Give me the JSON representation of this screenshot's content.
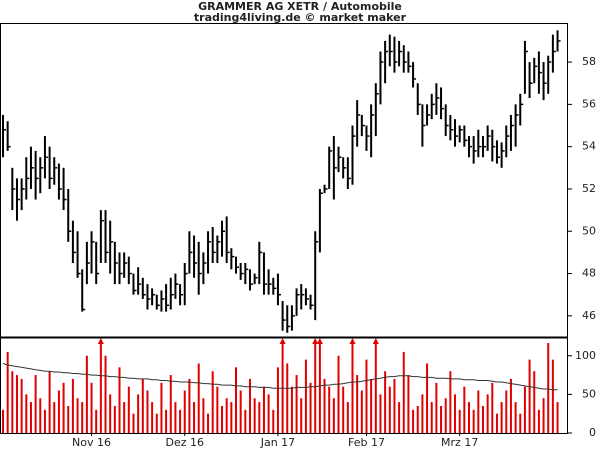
{
  "chart_data": [
    {
      "type": "ohlc",
      "title": "GRAMMER AG XETR / Automobile",
      "subtitle": "trading4living.de © market maker",
      "color": "#000000",
      "ylim": [
        45,
        59.8
      ],
      "yticks": [
        46,
        48,
        50,
        52,
        54,
        56,
        58
      ],
      "high": [
        55.5,
        55.2,
        53,
        52.5,
        52.5,
        53.5,
        54,
        53.8,
        53.5,
        54.5,
        54,
        53.5,
        53.2,
        53,
        52,
        50.5,
        50,
        48.2,
        49.5,
        50,
        49.5,
        51,
        51,
        50.5,
        49.5,
        49,
        49,
        48.8,
        48,
        48.3,
        47.8,
        47.5,
        47.3,
        47,
        47.2,
        47.5,
        47.8,
        48,
        47.5,
        48.5,
        50,
        49.8,
        49.5,
        49,
        50,
        50.2,
        49.8,
        50.5,
        50.7,
        49.2,
        48.8,
        48.5,
        48.5,
        48.2,
        48,
        49.5,
        49,
        48.2,
        47.8,
        48,
        46.7,
        46.5,
        46.5,
        47.3,
        47.5,
        47.3,
        47,
        50,
        52,
        52.2,
        54,
        54.5,
        54,
        53.5,
        53.5,
        55,
        56.2,
        55.5,
        55,
        56,
        57,
        58.5,
        59,
        59.3,
        59.2,
        59,
        58.8,
        58.5,
        58,
        57,
        56,
        56,
        56.5,
        57,
        56.8,
        56,
        55.5,
        55.3,
        55,
        55,
        54.5,
        54.5,
        54.8,
        54.5,
        55,
        54.8,
        54.3,
        54.2,
        55,
        55.5,
        56,
        56.5,
        59,
        58,
        58.2,
        58.5,
        58,
        58.3,
        59.3,
        59.5
      ],
      "low": [
        53.5,
        53.8,
        51,
        50.5,
        51,
        51.5,
        52,
        51.5,
        51.8,
        52.5,
        52,
        52.2,
        51.5,
        51,
        49.5,
        48.5,
        47.8,
        46.2,
        47.5,
        48,
        47.5,
        48.5,
        48.5,
        48,
        47.5,
        47.5,
        47.8,
        47.5,
        47,
        47,
        46.8,
        46.3,
        46.5,
        46.3,
        46.2,
        46.2,
        46.3,
        46.8,
        46.5,
        46.5,
        48,
        47.8,
        47,
        47.5,
        48,
        48.5,
        48.5,
        48.8,
        48.5,
        48.2,
        48,
        47.7,
        47.5,
        47.2,
        47.5,
        47.5,
        47,
        47,
        47,
        46.5,
        45.3,
        45.2,
        45.3,
        46,
        46.3,
        46.5,
        46.3,
        45.8,
        49,
        51.8,
        52,
        51.5,
        52.8,
        52.5,
        52,
        52.2,
        54,
        54.5,
        53.8,
        53.5,
        54.5,
        56,
        57,
        57.8,
        57.5,
        57.8,
        57.5,
        57.5,
        56.8,
        55.5,
        54,
        55,
        55.3,
        55.5,
        55.3,
        54.5,
        54.3,
        54,
        54.2,
        54,
        53.5,
        53.2,
        53.5,
        53.5,
        53.8,
        53.3,
        53.2,
        53,
        53.5,
        53.8,
        54,
        55,
        56.5,
        56.3,
        57,
        56.5,
        56.2,
        56.5,
        57.5,
        58.5
      ],
      "close": [
        54.8,
        54,
        52,
        51.5,
        52,
        52.5,
        53,
        52.5,
        53,
        53.5,
        52.5,
        53,
        52,
        51.5,
        50,
        49,
        48,
        46.3,
        48.5,
        49.5,
        48,
        50.5,
        49,
        49.5,
        48.5,
        48,
        48.5,
        48,
        47.2,
        47.5,
        47,
        46.8,
        47,
        46.5,
        46.8,
        46.5,
        47,
        47.5,
        47,
        48,
        49,
        48.5,
        48,
        48.5,
        49.5,
        49,
        49.5,
        50,
        49,
        48.8,
        48.3,
        48,
        48.2,
        47.5,
        47.8,
        49,
        47.5,
        47.5,
        47.3,
        47,
        45.8,
        45.5,
        46,
        47,
        47,
        46.8,
        46.5,
        49.5,
        51.8,
        52,
        53.8,
        53,
        53.5,
        53,
        52.5,
        54.5,
        55.5,
        55,
        54.5,
        55.5,
        56.5,
        58,
        58.5,
        58.5,
        58,
        58.5,
        58,
        57.8,
        57.2,
        56,
        55,
        55.5,
        56,
        56.3,
        55.8,
        55,
        54.8,
        54.5,
        54.8,
        54.3,
        54,
        53.8,
        54,
        54,
        54.5,
        54,
        53.5,
        53.8,
        54.5,
        55,
        55.5,
        56,
        58.5,
        57,
        57.8,
        57.5,
        57,
        58,
        58.5,
        59
      ]
    },
    {
      "type": "bar",
      "ylim": [
        0,
        123
      ],
      "yticks": [
        0,
        50,
        100
      ],
      "categories": [
        null,
        null,
        null,
        null,
        null,
        null,
        null,
        null,
        null,
        null,
        null,
        null,
        null,
        null,
        null,
        null,
        null,
        null,
        null,
        "Nov 16",
        null,
        null,
        null,
        null,
        null,
        null,
        null,
        null,
        null,
        null,
        null,
        null,
        null,
        null,
        null,
        null,
        null,
        null,
        null,
        "Dez 16",
        null,
        null,
        null,
        null,
        null,
        null,
        null,
        null,
        null,
        null,
        null,
        null,
        null,
        null,
        null,
        null,
        null,
        null,
        null,
        "Jan 17",
        null,
        null,
        null,
        null,
        null,
        null,
        null,
        null,
        null,
        null,
        null,
        null,
        null,
        null,
        null,
        null,
        null,
        null,
        "Feb 17",
        null,
        null,
        null,
        null,
        null,
        null,
        null,
        null,
        null,
        null,
        null,
        null,
        null,
        null,
        null,
        null,
        null,
        null,
        null,
        "Mrz 17",
        null,
        null,
        null,
        null,
        null,
        null,
        null,
        null,
        null,
        null,
        null,
        null,
        null,
        null,
        null,
        null,
        null,
        null,
        null,
        null,
        null
      ],
      "series": [
        {
          "color": "#e00000",
          "values": [
            30,
            105,
            80,
            75,
            70,
            50,
            40,
            75,
            45,
            30,
            80,
            40,
            55,
            65,
            35,
            70,
            45,
            40,
            100,
            65,
            30,
            140,
            100,
            50,
            35,
            85,
            40,
            60,
            25,
            50,
            70,
            55,
            40,
            25,
            65,
            30,
            75,
            40,
            30,
            55,
            70,
            40,
            90,
            45,
            25,
            80,
            60,
            35,
            45,
            40,
            85,
            55,
            30,
            70,
            45,
            40,
            60,
            50,
            30,
            85,
            140,
            90,
            60,
            75,
            45,
            95,
            65,
            135,
            140,
            70,
            60,
            45,
            100,
            60,
            40,
            140,
            75,
            55,
            95,
            70,
            140,
            50,
            80,
            60,
            70,
            40,
            105,
            75,
            30,
            35,
            50,
            90,
            40,
            65,
            35,
            45,
            80,
            50,
            30,
            60,
            40,
            30,
            55,
            35,
            50,
            65,
            25,
            40,
            55,
            70,
            40,
            25,
            60,
            95,
            80,
            30,
            45,
            120,
            95,
            40
          ]
        },
        {
          "type": "line",
          "color": "#333333",
          "values": [
            90,
            88,
            87,
            86,
            85,
            84,
            83,
            82,
            81,
            80,
            80,
            79,
            79,
            78,
            78,
            77,
            77,
            76,
            76,
            75,
            75,
            74,
            74,
            73,
            73,
            72,
            72,
            71,
            71,
            70,
            70,
            70,
            69,
            69,
            68,
            68,
            67,
            67,
            66,
            66,
            66,
            65,
            65,
            64,
            64,
            63,
            63,
            62,
            62,
            62,
            61,
            61,
            60,
            60,
            60,
            59,
            59,
            59,
            58,
            58,
            58,
            58,
            58,
            59,
            59,
            59,
            60,
            60,
            61,
            62,
            62,
            63,
            63,
            64,
            65,
            66,
            66,
            67,
            68,
            69,
            70,
            71,
            72,
            73,
            73,
            74,
            74,
            74,
            73,
            73,
            72,
            72,
            72,
            71,
            71,
            71,
            70,
            70,
            70,
            69,
            69,
            69,
            68,
            68,
            68,
            67,
            66,
            66,
            65,
            64,
            63,
            62,
            61,
            60,
            59,
            58,
            57,
            57,
            56,
            56
          ]
        }
      ]
    }
  ]
}
